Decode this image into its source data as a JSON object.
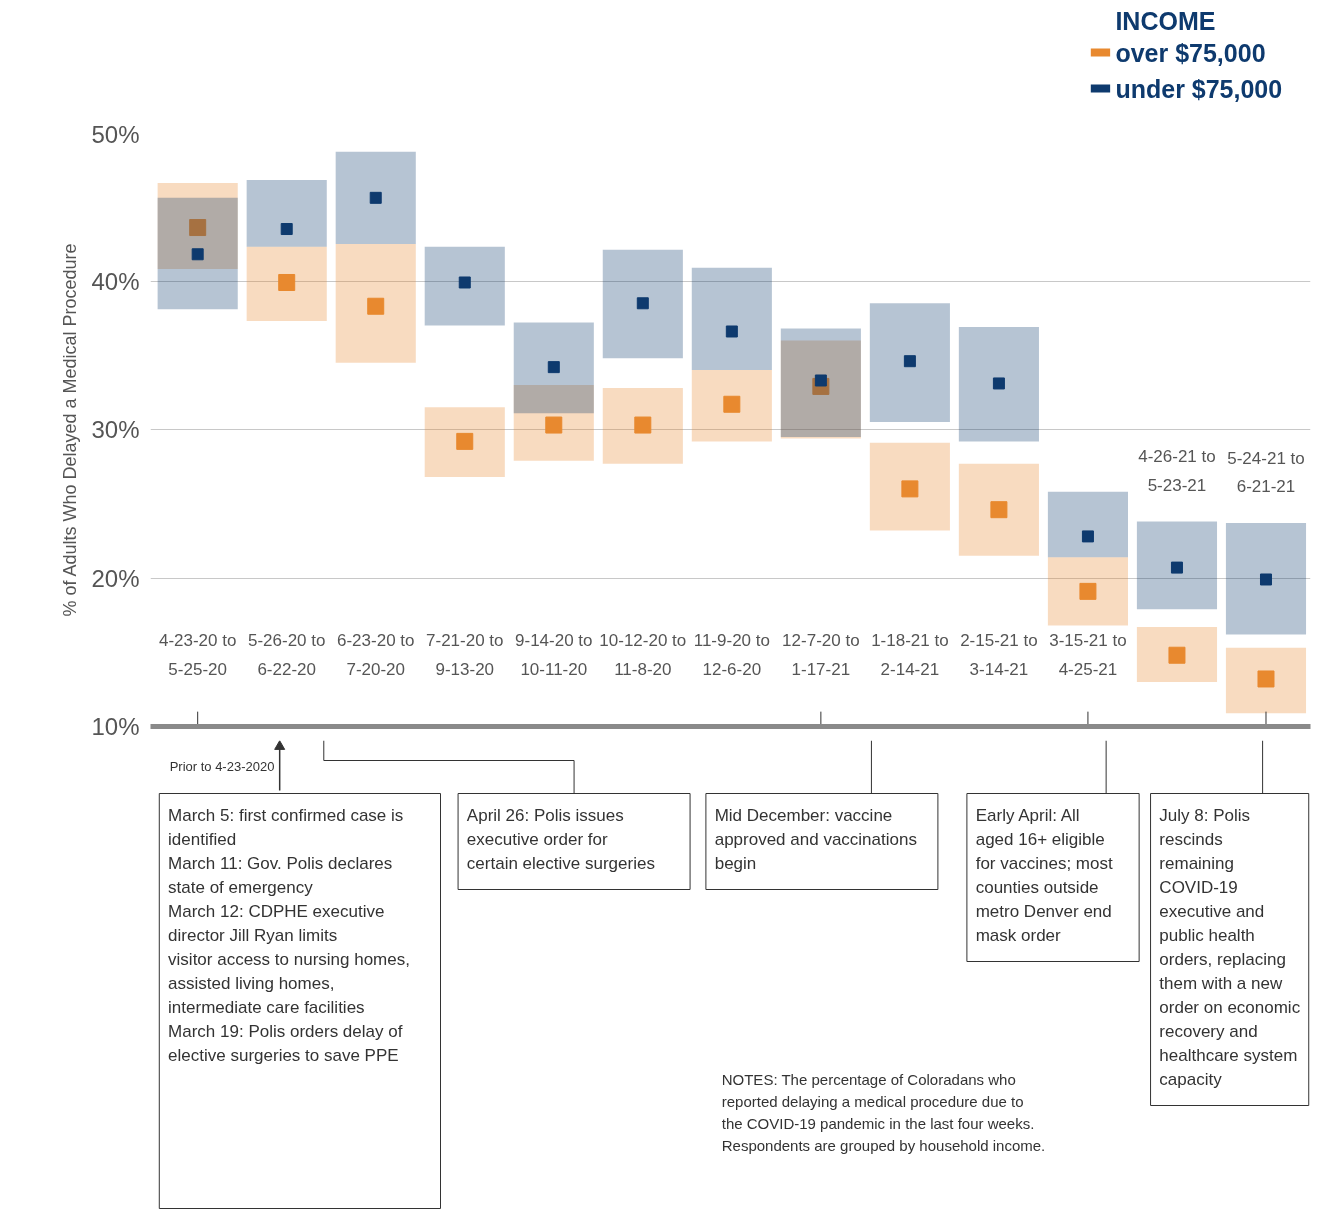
{
  "chart_data": {
    "type": "scatter",
    "ylabel": "% of Adults Who Delayed a Medical Procedure",
    "legend_title": "INCOME",
    "legend": "top right",
    "grid": "y",
    "marker": "square",
    "categories": [
      "4-23-20 to 5-25-20",
      "5-26-20 to 6-22-20",
      "6-23-20 to 7-20-20",
      "7-21-20 to 9-13-20",
      "9-14-20 to 10-11-20",
      "10-12-20 to 11-8-20",
      "11-9-20 to 12-6-20",
      "12-7-20 to 1-17-21",
      "1-18-21 to 2-14-21",
      "2-15-21 to 3-14-21",
      "3-15-21 to 4-25-21",
      "4-26-21 to 5-23-21",
      "5-24-21 to 6-21-21"
    ],
    "ylim": [
      10,
      50
    ],
    "yticks": [
      {
        "value": 10,
        "label": "10%"
      },
      {
        "value": 20,
        "label": "20%"
      },
      {
        "value": 30,
        "label": "30%"
      },
      {
        "value": 40,
        "label": "40%"
      },
      {
        "value": 50,
        "label": "50%"
      }
    ],
    "series": [
      {
        "name": "over $75,000",
        "color": "#e8892f",
        "values": [
          43.6,
          39.9,
          38.3,
          29.2,
          30.3,
          30.3,
          31.7,
          32.9,
          26.0,
          24.6,
          19.1,
          14.8,
          13.2
        ],
        "errors": [
          [
            40.8,
            46.6
          ],
          [
            37.3,
            42.3
          ],
          [
            34.5,
            42.5
          ],
          [
            26.8,
            31.5
          ],
          [
            27.9,
            33.0
          ],
          [
            27.7,
            32.8
          ],
          [
            29.2,
            34.0
          ],
          [
            29.4,
            36.0
          ],
          [
            23.2,
            29.1
          ],
          [
            21.5,
            27.7
          ],
          [
            16.8,
            21.4
          ],
          [
            13.0,
            16.7
          ],
          [
            10.9,
            15.3
          ]
        ]
      },
      {
        "name": "under $75,000",
        "color": "#0e3a6e",
        "values": [
          41.8,
          43.5,
          45.6,
          39.9,
          34.2,
          38.5,
          36.6,
          33.3,
          34.6,
          33.1,
          22.8,
          20.7,
          19.9
        ],
        "errors": [
          [
            38.1,
            45.6
          ],
          [
            42.3,
            46.8
          ],
          [
            42.5,
            48.7
          ],
          [
            37.0,
            42.3
          ],
          [
            31.1,
            37.2
          ],
          [
            34.8,
            42.1
          ],
          [
            34.0,
            40.9
          ],
          [
            29.5,
            36.8
          ],
          [
            30.5,
            38.5
          ],
          [
            29.2,
            36.9
          ],
          [
            21.4,
            25.8
          ],
          [
            17.9,
            23.8
          ],
          [
            16.2,
            23.7
          ]
        ]
      }
    ],
    "annotations": [
      "Prior to 4-23-2020",
      "March 5: first confirmed case is identified",
      "March 11: Gov. Polis declares state of emergency",
      "March 12: CDPHE executive director Jill Ryan limits visitor access to nursing homes, assisted living homes, intermediate care facilities",
      "March 19: Polis orders delay of elective surgeries to save PPE",
      "April 26: Polis issues executive order for certain elective surgeries",
      "Mid December: vaccine approved and vaccinations begin",
      "Early April: All aged 16+ eligible for vaccines; most counties outside metro Denver end mask order",
      "July 8: Polis rescinds remaining COVID-19 executive and public health orders, replacing them with a new order on economic recovery and healthcare system capacity",
      "NOTES: The percentage of Coloradans who reported delaying a medical procedure due to the COVID-19 pandemic in the last four weeks. Respondents are grouped by household income."
    ]
  }
}
